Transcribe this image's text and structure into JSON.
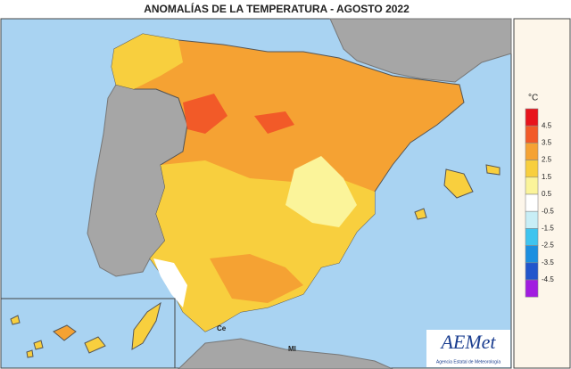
{
  "title": "ANOMALÍAS DE LA TEMPERATURA - AGOSTO 2022",
  "legend": {
    "unit": "°C",
    "thresholds": [
      4.5,
      3.5,
      2.5,
      1.5,
      0.5,
      -0.5,
      -1.5,
      -2.5,
      -3.5,
      -4.5
    ],
    "colors": [
      "#e8141c",
      "#f25a28",
      "#f5a233",
      "#f8cf3e",
      "#fbf49a",
      "#ffffff",
      "#c8eef6",
      "#3fc4ef",
      "#1c8fe0",
      "#2255cc",
      "#a21ce0"
    ]
  },
  "map_labels": {
    "ceuta": "Ce",
    "melilla": "Ml"
  },
  "logo": {
    "name": "AEMet",
    "subtitle": "Agencia Estatal de Meteorología"
  }
}
